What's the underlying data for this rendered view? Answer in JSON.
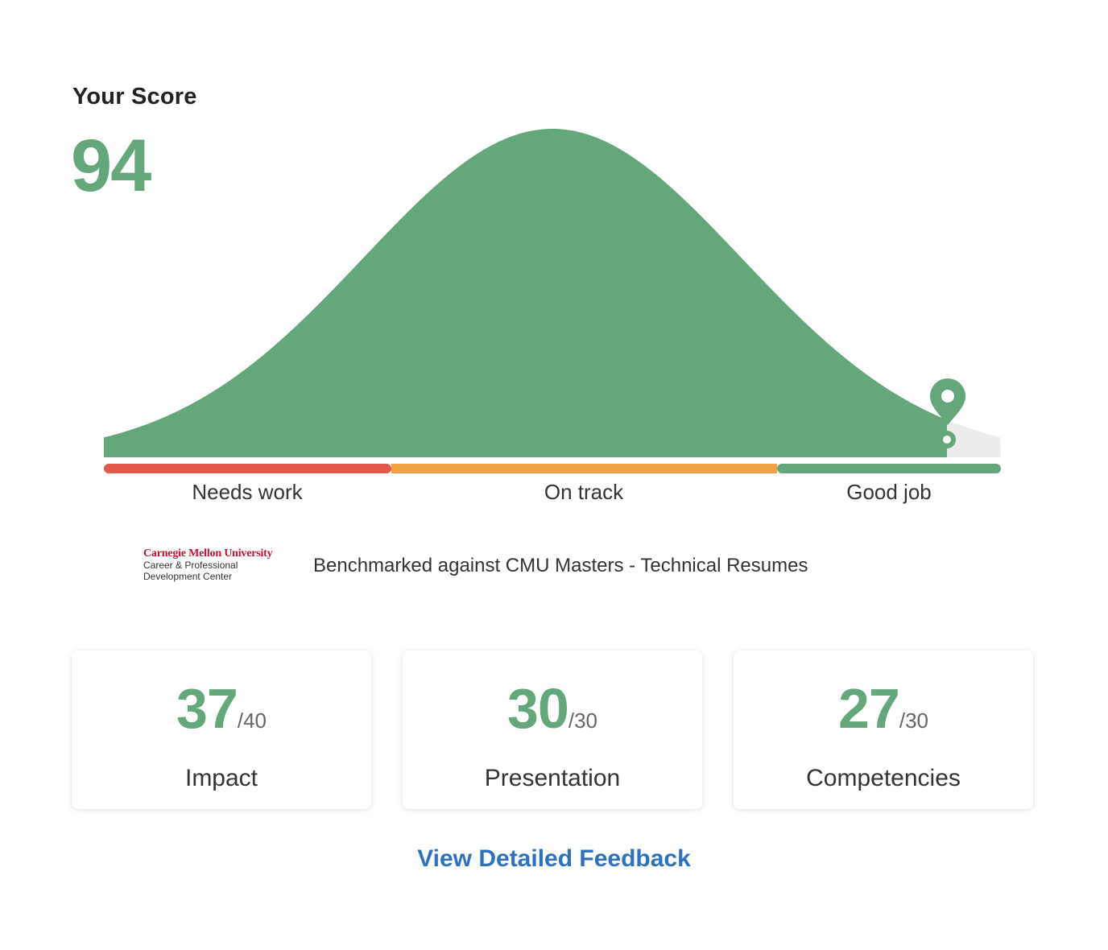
{
  "colors": {
    "green": "#63a77b",
    "red": "#e05a47",
    "orange": "#f2a044",
    "light_gray": "#ececec",
    "link_blue": "#2d72c2"
  },
  "score": {
    "label": "Your Score",
    "value": "94"
  },
  "distribution": {
    "bands": [
      {
        "label": "Needs work",
        "color": "red"
      },
      {
        "label": "On track",
        "color": "orange"
      },
      {
        "label": "Good job",
        "color": "green"
      }
    ],
    "marker_icon": "map-pin-icon"
  },
  "benchmark": {
    "logo_name": "Carnegie Mellon University",
    "logo_line1": "Career & Professional",
    "logo_line2": "Development Center",
    "text": "Benchmarked against CMU Masters - Technical Resumes"
  },
  "cards": [
    {
      "score": "37",
      "max": "/40",
      "title": "Impact"
    },
    {
      "score": "30",
      "max": "/30",
      "title": "Presentation"
    },
    {
      "score": "27",
      "max": "/30",
      "title": "Competencies"
    }
  ],
  "feedback_link": "View Detailed Feedback"
}
